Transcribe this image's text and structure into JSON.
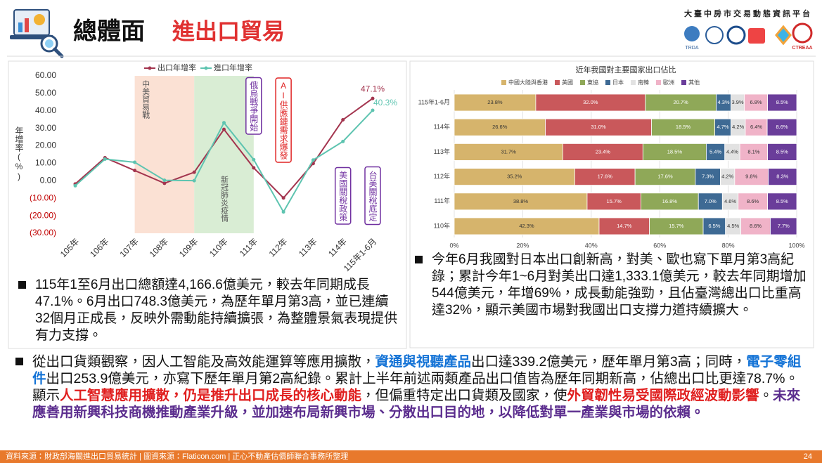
{
  "header": {
    "title": "總體面",
    "subtitle": "進出口貿易",
    "platform": "大臺中房市交易動態資訊平台",
    "logos": [
      "TRDA",
      "CTREAA"
    ]
  },
  "chart_data": [
    {
      "type": "line",
      "y_axis_label": "年增率(%)",
      "categories": [
        "105年",
        "106年",
        "107年",
        "108年",
        "109年",
        "110年",
        "111年",
        "112年",
        "113年",
        "114年",
        "115年1-6月"
      ],
      "series": [
        {
          "name": "出口年增率",
          "color": "#a3344e",
          "values": [
            -1.8,
            13.2,
            5.9,
            -1.4,
            4.9,
            29.4,
            7.4,
            -9.8,
            9.9,
            34.9,
            47.1
          ],
          "value_labels": [
            null,
            null,
            null,
            null,
            null,
            null,
            null,
            null,
            null,
            null,
            "47.1%"
          ]
        },
        {
          "name": "進口年增率",
          "color": "#5ec4b0",
          "values": [
            -2.8,
            12.4,
            10.6,
            0.3,
            0.1,
            33.2,
            12.1,
            -17.8,
            11.9,
            22.5,
            40.3
          ],
          "value_labels": [
            null,
            null,
            null,
            null,
            null,
            null,
            null,
            null,
            null,
            null,
            "40.3%"
          ]
        }
      ],
      "ylim": [
        -30,
        60
      ],
      "yticks": [
        {
          "value": 60,
          "label": "60.00"
        },
        {
          "value": 50,
          "label": "50.00"
        },
        {
          "value": 40,
          "label": "40.00"
        },
        {
          "value": 30,
          "label": "30.00"
        },
        {
          "value": 20,
          "label": "20.00"
        },
        {
          "value": 10,
          "label": "10.00"
        },
        {
          "value": 0,
          "label": "0.00"
        },
        {
          "value": -10,
          "label": "(10.00)"
        },
        {
          "value": -20,
          "label": "(20.00)"
        },
        {
          "value": -30,
          "label": "(30.00)"
        }
      ],
      "grid": false,
      "legend": "top",
      "regions": [
        {
          "label": "中美貿易戰",
          "from": "107年",
          "to": "109年",
          "color": "#fbe1d4"
        },
        {
          "label": "新冠肺炎疫情",
          "from": "109年",
          "to": "111年",
          "color": "#d9edd4"
        }
      ],
      "annotations": [
        {
          "text": "俄烏戰爭開始",
          "at": "111年",
          "color": "#7030a0"
        },
        {
          "text": "AI供應鏈需求爆發",
          "at": "112年",
          "color": "#e02424"
        },
        {
          "text": "美國關稅政策",
          "at": "114年",
          "color": "#7030a0"
        },
        {
          "text": "台美關稅底定",
          "at": "115年1-6月",
          "color": "#7030a0"
        }
      ]
    },
    {
      "type": "stacked-bar-horizontal",
      "title": "近年我國對主要國家出口佔比",
      "categories": [
        "115年1-6月",
        "114年",
        "113年",
        "112年",
        "111年",
        "110年"
      ],
      "series": [
        {
          "name": "中國大陸與香港",
          "color": "#d6b46c",
          "values": [
            23.8,
            26.6,
            31.7,
            35.2,
            38.8,
            42.3
          ],
          "value_labels": [
            "23.8%",
            "26.6%",
            "31.7%",
            "35.2%",
            "38.8%",
            "42.3%"
          ]
        },
        {
          "name": "美國",
          "color": "#c9585b",
          "values": [
            32.0,
            31.0,
            23.4,
            17.6,
            15.7,
            14.7
          ],
          "value_labels": [
            "32.0%",
            "31.0%",
            "23.4%",
            "17.6%",
            "15.7%",
            "14.7%"
          ]
        },
        {
          "name": "東協",
          "color": "#8fa858",
          "values": [
            20.7,
            18.5,
            18.5,
            17.6,
            16.8,
            15.7
          ],
          "value_labels": [
            "20.7%",
            "18.5%",
            "18.5%",
            "17.6%",
            "16.8%",
            "15.7%"
          ]
        },
        {
          "name": "日本",
          "color": "#3e6a94",
          "values": [
            4.3,
            4.7,
            5.4,
            7.3,
            7.0,
            6.5
          ],
          "value_labels": [
            "4.3%",
            "4.7%",
            "5.4%",
            "7.3%",
            "7.0%",
            "6.5%"
          ]
        },
        {
          "name": "南韓",
          "color": "#e2e2e2",
          "values": [
            3.9,
            4.2,
            4.4,
            4.2,
            4.6,
            4.5
          ],
          "value_labels": [
            "3.9%",
            "4.2%",
            "4.4%",
            "4.2%",
            "4.6%",
            "4.5%"
          ]
        },
        {
          "name": "歐洲",
          "color": "#f0b3c8",
          "values": [
            6.8,
            6.4,
            8.1,
            9.8,
            8.6,
            8.6
          ],
          "value_labels": [
            "6.8%",
            "6.4%",
            "8.1%",
            "9.8%",
            "8.6%",
            "8.6%"
          ]
        },
        {
          "name": "其他",
          "color": "#6a3d9a",
          "values": [
            8.5,
            8.6,
            8.5,
            8.3,
            8.5,
            7.7
          ],
          "value_labels": [
            "8.5%",
            "8.6%",
            "8.5%",
            "8.3%",
            "8.5%",
            "7.7%"
          ]
        }
      ],
      "xlim": [
        0,
        100
      ],
      "xticks": [
        {
          "value": 0,
          "label": "0%"
        },
        {
          "value": 20,
          "label": "20%"
        },
        {
          "value": 40,
          "label": "40%"
        },
        {
          "value": 60,
          "label": "60%"
        },
        {
          "value": 80,
          "label": "80%"
        },
        {
          "value": 100,
          "label": "100%"
        }
      ],
      "grid": true,
      "legend": "top"
    }
  ],
  "paragraphs": {
    "left": "115年1至6月出口總額達4,166.6億美元，較去年同期成長47.1%。6月出口748.3億美元，為歷年單月第3高，並已連續32個月正成長，反映外需動能持續擴張，為整體景氣表現提供有力支撐。",
    "right": "今年6月我國對日本出口創新高，對美、歐也寫下單月第3高紀錄；累計今年1~6月對美出口達1,333.1億美元，較去年同期增加544億美元，年增69%，成長動能強勁，且佔臺灣總出口比重高達32%，顯示美國市場對我國出口支撐力道持續擴大。",
    "bottom": [
      {
        "text": "從出口貨類觀察，因人工智能及高效能運算等應用擴散，",
        "style": "normal"
      },
      {
        "text": "資通與視聽產品",
        "style": "blue"
      },
      {
        "text": "出口達339.2億美元，歷年單月第3高；同時，",
        "style": "normal"
      },
      {
        "text": "電子零組件",
        "style": "blue"
      },
      {
        "text": "出口253.9億美元，亦寫下歷年單月第2高紀錄。累計上半年前述兩類產品出口值皆為歷年同期新高，佔總出口比更達78.7%。顯示",
        "style": "normal"
      },
      {
        "text": "人工智慧應用擴散，仍是推升出口成長的核心動能",
        "style": "red"
      },
      {
        "text": "，但偏重特定出口貨類及國家，使",
        "style": "normal"
      },
      {
        "text": "外貿韌性易受國際政經波動影響",
        "style": "red"
      },
      {
        "text": "。",
        "style": "normal"
      },
      {
        "text": "未來應善用新興科技商機推動產業升級，並加速布局新興市場、分散出口目的地，以降低對單一產業與市場的依賴。",
        "style": "purple"
      }
    ]
  },
  "footer": {
    "source": "資料來源：財政部海關進出口貿易統計 | 圖資來源：Flaticon.com | 正心不動產估價師聯合事務所整理",
    "page": 24
  }
}
